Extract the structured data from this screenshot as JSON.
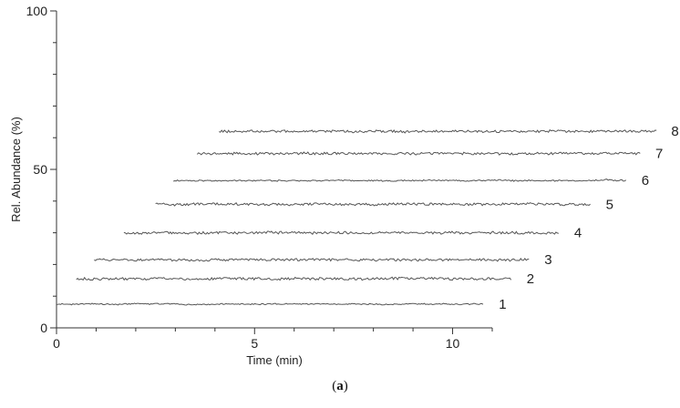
{
  "chart_data": {
    "type": "line",
    "title": "",
    "xlabel": "Time (min)",
    "ylabel": "Rel. Abundance (%)",
    "xlim": [
      0,
      11
    ],
    "ylim": [
      0,
      100
    ],
    "x_ticks": [
      0,
      5,
      10
    ],
    "y_ticks": [
      0,
      50,
      100
    ],
    "grid": false,
    "legend": "none",
    "line_color": "#555555",
    "series": [
      {
        "name": "1",
        "x_start": 0.0,
        "x_end": 10.8,
        "y_level": 7.5
      },
      {
        "name": "2",
        "x_start": 0.5,
        "x_end": 11.5,
        "y_level": 15.5
      },
      {
        "name": "3",
        "x_start": 0.95,
        "x_end": 11.95,
        "y_level": 21.5
      },
      {
        "name": "4",
        "x_start": 1.7,
        "x_end": 12.7,
        "y_level": 30.0
      },
      {
        "name": "5",
        "x_start": 2.5,
        "x_end": 13.5,
        "y_level": 39.0
      },
      {
        "name": "6",
        "x_start": 2.95,
        "x_end": 14.4,
        "y_level": 46.5
      },
      {
        "name": "7",
        "x_start": 3.55,
        "x_end": 14.75,
        "y_level": 55.0
      },
      {
        "name": "8",
        "x_start": 4.1,
        "x_end": 15.15,
        "y_level": 62.0
      }
    ]
  },
  "caption": {
    "open": "(",
    "letter": "a",
    "close": ")"
  }
}
